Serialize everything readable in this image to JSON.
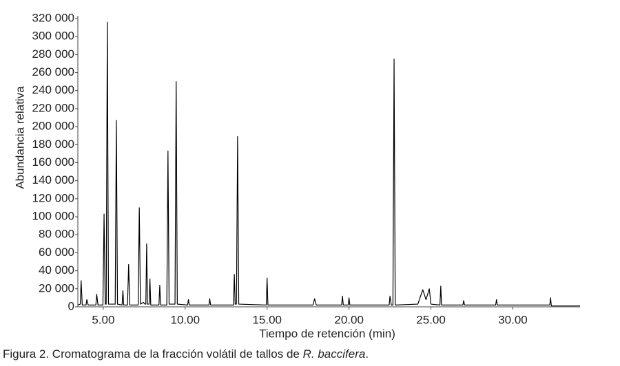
{
  "chart_data": {
    "type": "line",
    "x_label": "Tiempo de retención (min)",
    "y_label": "Abundancia relativa",
    "color": "#000000",
    "grid": false,
    "xlim": [
      3.45,
      34.1
    ],
    "ylim": [
      0,
      320000
    ],
    "xticks": [
      {
        "value": 5,
        "label": "5.00"
      },
      {
        "value": 10,
        "label": "10.00"
      },
      {
        "value": 15,
        "label": "15.00"
      },
      {
        "value": 20,
        "label": "20.00"
      },
      {
        "value": 25,
        "label": "25.00"
      },
      {
        "value": 30,
        "label": "30.00"
      }
    ],
    "yticks": [
      0,
      {
        "value": 20000,
        "label": "20 000"
      },
      {
        "value": 40000,
        "label": "40 000"
      },
      {
        "value": 60000,
        "label": "60 000"
      },
      {
        "value": 80000,
        "label": "80 000"
      },
      {
        "value": 100000,
        "label": "100 000"
      },
      {
        "value": 120000,
        "label": "120 000"
      },
      {
        "value": 140000,
        "label": "140 000"
      },
      {
        "value": 160000,
        "label": "160 000"
      },
      {
        "value": 180000,
        "label": "180 000"
      },
      {
        "value": 200000,
        "label": "200 000"
      },
      {
        "value": 220000,
        "label": "220 000"
      },
      {
        "value": 240000,
        "label": "240 000"
      },
      {
        "value": 260000,
        "label": "260 000"
      },
      {
        "value": 280000,
        "label": "280 000"
      },
      {
        "value": 300000,
        "label": "300 000"
      },
      {
        "value": 320000,
        "label": "320 000"
      }
    ],
    "x": [
      3.45,
      3.6,
      3.65,
      3.72,
      3.95,
      4.0,
      4.08,
      4.55,
      4.6,
      4.68,
      4.98,
      5.05,
      5.12,
      5.18,
      5.25,
      5.32,
      5.73,
      5.8,
      5.87,
      6.15,
      6.2,
      6.25,
      6.48,
      6.55,
      6.62,
      7.13,
      7.2,
      7.27,
      7.45,
      7.55,
      7.6,
      7.65,
      7.7,
      7.8,
      7.85,
      7.9,
      8.4,
      8.45,
      8.5,
      8.88,
      8.95,
      9.02,
      9.38,
      9.45,
      9.52,
      10.15,
      10.2,
      10.25,
      11.45,
      11.5,
      11.55,
      12.95,
      13.0,
      13.05,
      13.13,
      13.2,
      13.27,
      14.95,
      15.0,
      15.05,
      17.8,
      17.9,
      18.0,
      19.55,
      19.6,
      19.65,
      19.95,
      20.0,
      20.05,
      22.45,
      22.5,
      22.58,
      22.68,
      22.75,
      22.82,
      24.2,
      24.5,
      24.7,
      24.9,
      25.0,
      25.55,
      25.6,
      25.65,
      26.95,
      27.0,
      27.05,
      28.95,
      29.0,
      29.05,
      32.25,
      32.3,
      32.35,
      34.1
    ],
    "values": [
      2000,
      3000,
      29000,
      2000,
      2000,
      8000,
      2000,
      2000,
      14000,
      2000,
      2000,
      103000,
      3000,
      3000,
      316000,
      3000,
      3000,
      207000,
      3000,
      2000,
      18000,
      2000,
      2000,
      47000,
      2000,
      2000,
      110000,
      3000,
      5000,
      3000,
      3000,
      70000,
      3000,
      3000,
      31000,
      2000,
      2000,
      24000,
      2000,
      2000,
      173000,
      3000,
      3000,
      250000,
      3000,
      2000,
      8000,
      2000,
      2000,
      9000,
      2000,
      2000,
      36000,
      3000,
      3000,
      189000,
      3000,
      2000,
      32000,
      2000,
      2000,
      9000,
      2000,
      2000,
      12000,
      2000,
      2000,
      10000,
      2000,
      2000,
      12000,
      2000,
      2000,
      275000,
      2000,
      3000,
      19000,
      8000,
      20000,
      3000,
      2000,
      23000,
      2000,
      2000,
      7000,
      2000,
      2000,
      8000,
      2000,
      2000,
      10000,
      1000,
      1000
    ]
  },
  "caption": {
    "text": "Figura 2. Cromatograma de la fracción volátil de tallos de ",
    "italic": "R. baccifera",
    "end": "."
  }
}
